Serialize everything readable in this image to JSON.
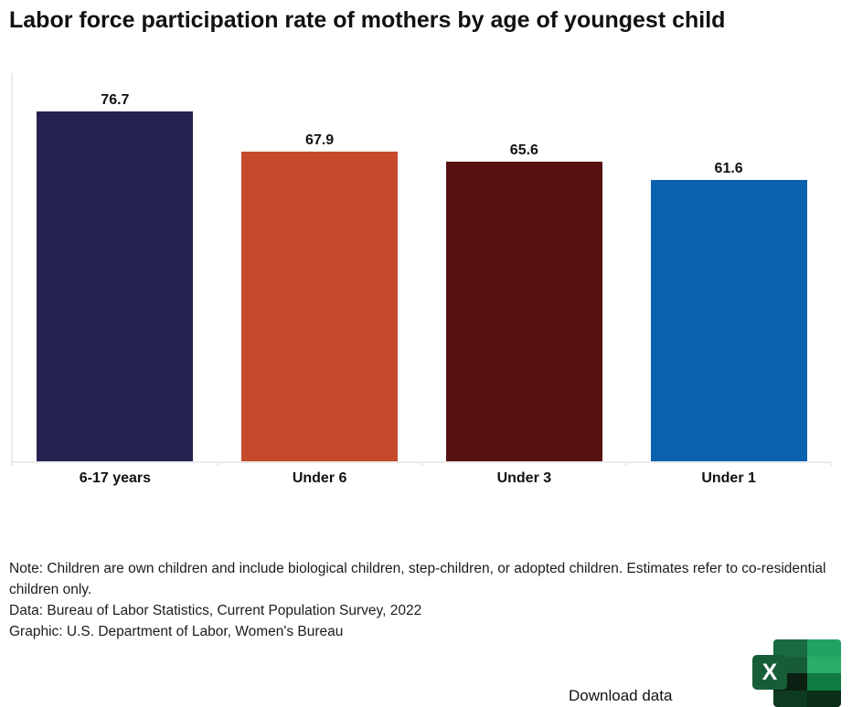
{
  "title": "Labor force participation rate of mothers by age of youngest child",
  "chart_data": {
    "type": "bar",
    "categories": [
      "6-17 years",
      "Under 6",
      "Under 3",
      "Under 1"
    ],
    "values": [
      76.7,
      67.9,
      65.6,
      61.6
    ],
    "bar_colors": [
      "#252151",
      "#c54a2b",
      "#581110",
      "#0b61ae"
    ],
    "title": "Labor force participation rate of mothers by age of youngest child",
    "xlabel": "",
    "ylabel": "",
    "ylim": [
      0,
      85
    ],
    "grid": false,
    "legend": "none",
    "value_labels_shown": true,
    "axis_color": "#ebebeb"
  },
  "notes": {
    "note": "Note: Children are own children and include biological children, step-children, or adopted children. Estimates refer to co-residential children only.",
    "data_source": "Data: Bureau of Labor Statistics, Current Population Survey, 2022",
    "graphic_credit": "Graphic: U.S. Department of Labor, Women's Bureau"
  },
  "footer": {
    "download_label": "Download data",
    "excel_icon": "excel-logo",
    "excel_letter": "X",
    "excel_green": "#107C41"
  }
}
